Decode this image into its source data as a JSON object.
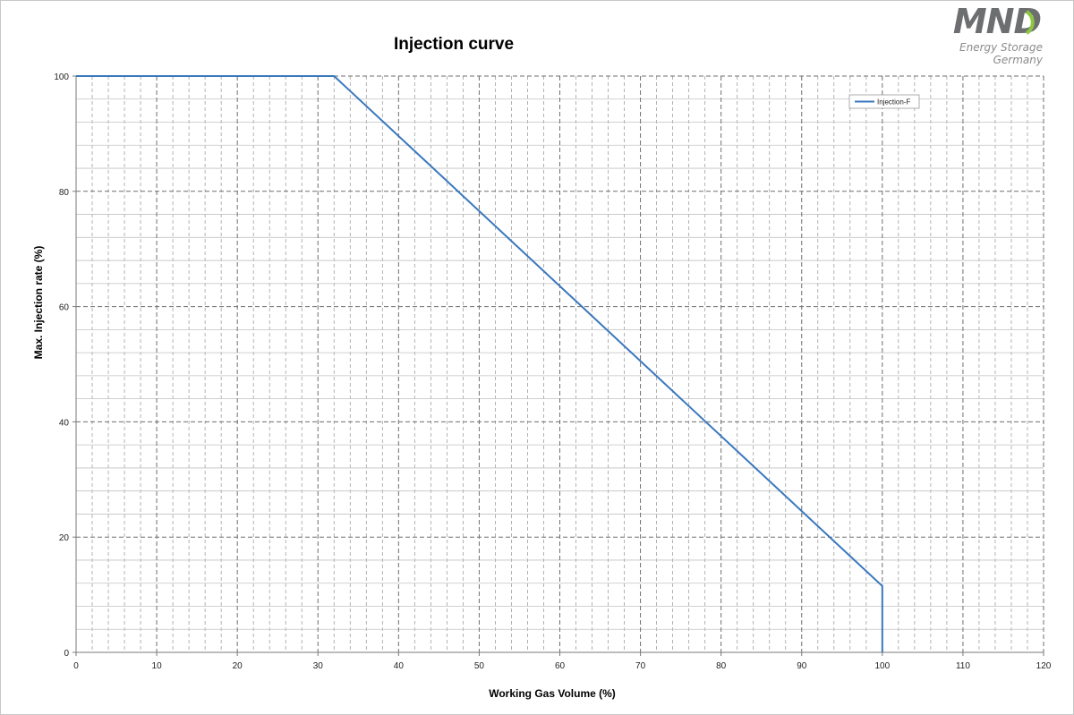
{
  "logo": {
    "mark": "MND",
    "line1": "Energy Storage",
    "line2": "Germany",
    "gray": "#6d6e70",
    "green": "#8dc63f"
  },
  "chart_data": {
    "type": "line",
    "title": "Injection curve",
    "xlabel": "Working Gas Volume (%)",
    "ylabel": "Max.  Injection  rate (%)",
    "xlim": [
      0,
      120
    ],
    "ylim": [
      0,
      100
    ],
    "x_ticks": [
      0,
      10,
      20,
      30,
      40,
      50,
      60,
      70,
      80,
      90,
      100,
      110,
      120
    ],
    "y_ticks": [
      0,
      20,
      40,
      60,
      80,
      100
    ],
    "grid": true,
    "legend": "top-right",
    "series": [
      {
        "name": "Injection-F",
        "color": "#3a78be",
        "x": [
          0,
          32,
          100,
          100
        ],
        "y": [
          100,
          100,
          11.5,
          0
        ]
      }
    ]
  }
}
